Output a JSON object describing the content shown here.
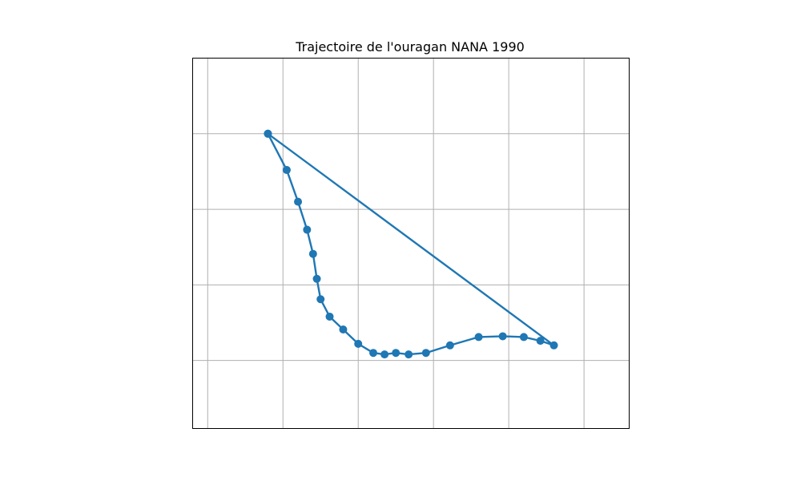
{
  "chart_data": {
    "type": "line",
    "title": "Trajectoire de l'ouragan NANA 1990",
    "xlabel": "",
    "ylabel": "",
    "grid": true,
    "markers": true,
    "xlim": [
      -0.2,
      5.6
    ],
    "ylim": [
      -0.9,
      4.0
    ],
    "xgrid": [
      0,
      1,
      2,
      3,
      4,
      5
    ],
    "ygrid": [
      0,
      1,
      2,
      3
    ],
    "series": [
      {
        "color": "#1f77b4",
        "x": [
          0.8,
          1.05,
          1.2,
          1.32,
          1.4,
          1.45,
          1.5,
          1.62,
          1.8,
          2.0,
          2.2,
          2.35,
          2.5,
          2.67,
          2.9,
          3.22,
          3.6,
          3.92,
          4.2,
          4.42,
          4.6,
          0.8
        ],
        "y": [
          3.0,
          2.52,
          2.1,
          1.73,
          1.41,
          1.08,
          0.81,
          0.58,
          0.41,
          0.22,
          0.1,
          0.08,
          0.1,
          0.08,
          0.1,
          0.2,
          0.31,
          0.32,
          0.31,
          0.26,
          0.2,
          3.0
        ]
      }
    ]
  }
}
